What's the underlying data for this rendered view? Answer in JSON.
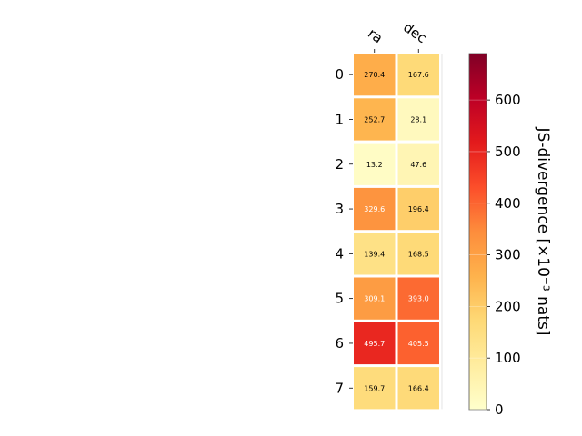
{
  "chart_data": {
    "type": "heatmap",
    "x_categories": [
      "ra",
      "dec"
    ],
    "y_categories": [
      "0",
      "1",
      "2",
      "3",
      "4",
      "5",
      "6",
      "7"
    ],
    "values": [
      [
        270.4,
        167.6
      ],
      [
        252.7,
        28.1
      ],
      [
        13.2,
        47.6
      ],
      [
        329.6,
        196.4
      ],
      [
        139.4,
        168.5
      ],
      [
        309.1,
        393.0
      ],
      [
        495.7,
        405.5
      ],
      [
        159.7,
        166.4
      ]
    ],
    "value_labels": [
      [
        "270.4",
        "167.6"
      ],
      [
        "252.7",
        "28.1"
      ],
      [
        "13.2",
        "47.6"
      ],
      [
        "329.6",
        "196.4"
      ],
      [
        "139.4",
        "168.5"
      ],
      [
        "309.1",
        "393.0"
      ],
      [
        "495.7",
        "405.5"
      ],
      [
        "159.7",
        "166.4"
      ]
    ],
    "colorbar": {
      "label": "JS-divergence [×10⁻³ nats]",
      "range": [
        0,
        690
      ],
      "ticks": [
        0,
        100,
        200,
        300,
        400,
        500,
        600
      ],
      "tick_labels": [
        "0",
        "100",
        "200",
        "300",
        "400",
        "500",
        "600"
      ],
      "colormap": "YlOrRd",
      "placement": "right"
    },
    "x_tick_position": "top",
    "grid": false
  }
}
